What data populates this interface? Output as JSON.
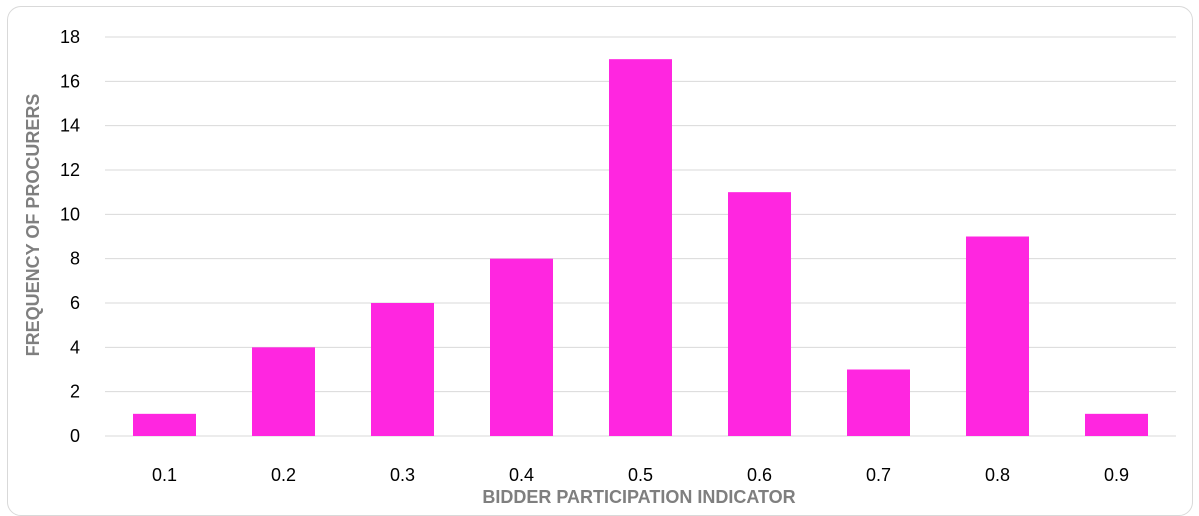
{
  "chart_data": {
    "type": "bar",
    "categories": [
      "0.1",
      "0.2",
      "0.3",
      "0.4",
      "0.5",
      "0.6",
      "0.7",
      "0.8",
      "0.9"
    ],
    "values": [
      1,
      4,
      6,
      8,
      17,
      11,
      3,
      9,
      1
    ],
    "title": "",
    "xlabel": "BIDDER PARTICIPATION INDICATOR",
    "ylabel": "FREQUENCY OF PROCURERS",
    "ylim": [
      0,
      18
    ],
    "yticks": [
      "0",
      "2",
      "4",
      "6",
      "8",
      "10",
      "12",
      "14",
      "16",
      "18"
    ],
    "grid": true,
    "legend": "none",
    "bar_color": "#ff26e0",
    "grid_color": "#d9d9d9"
  }
}
